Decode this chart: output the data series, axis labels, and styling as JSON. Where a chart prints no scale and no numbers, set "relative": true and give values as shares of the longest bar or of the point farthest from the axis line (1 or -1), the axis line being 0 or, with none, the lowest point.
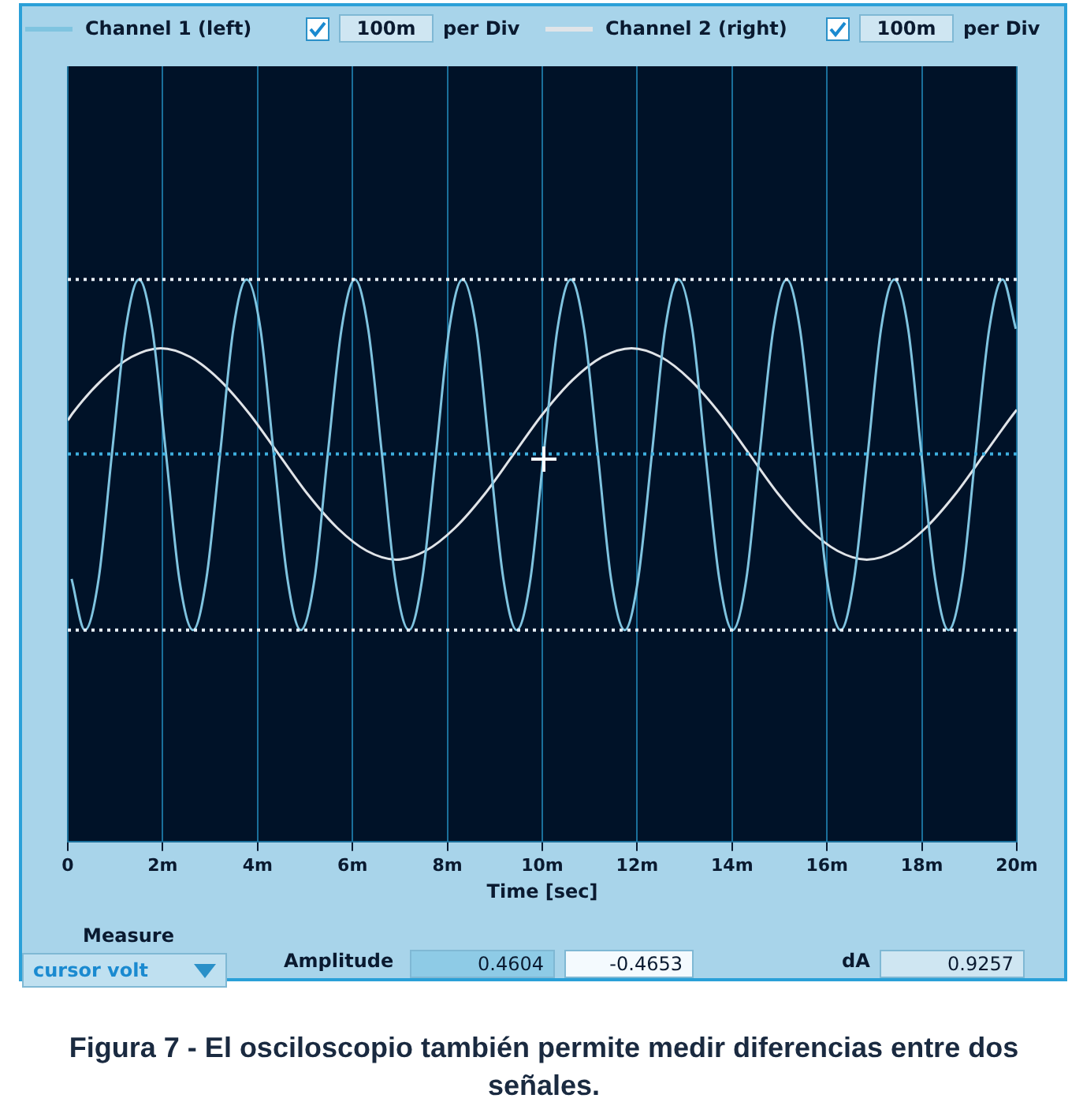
{
  "chart_data": {
    "type": "line",
    "relative": true,
    "xlabel": "Time [sec]",
    "xlim": [
      0,
      20
    ],
    "xticks": [
      0,
      {
        "value": 2,
        "label": "2m"
      },
      {
        "value": 4,
        "label": "4m"
      },
      {
        "value": 6,
        "label": "6m"
      },
      {
        "value": 8,
        "label": "8m"
      },
      {
        "value": 10,
        "label": "10m"
      },
      {
        "value": 12,
        "label": "12m"
      },
      {
        "value": 14,
        "label": "14m"
      },
      {
        "value": 16,
        "label": "16m"
      },
      {
        "value": 18,
        "label": "18m"
      },
      {
        "value": 20,
        "label": "20m"
      }
    ],
    "grid": "x",
    "legend": "top",
    "marker": "none",
    "line_style": "solid",
    "series": [
      {
        "name": "Channel 1 (left)",
        "color": "#7fc4e0",
        "x": [
          0.08,
          0.36,
          0.65,
          0.93,
          1.22,
          1.5,
          1.78,
          2.07,
          2.35,
          2.64,
          2.92,
          3.21,
          3.49,
          3.77,
          4.06,
          4.34,
          4.63,
          4.91,
          5.2,
          5.48,
          5.77,
          6.05,
          6.33,
          6.62,
          6.9,
          7.19,
          7.47,
          7.76,
          8.04,
          8.32,
          8.61,
          8.89,
          9.18,
          9.46,
          9.75,
          10.03,
          10.32,
          10.6,
          10.88,
          11.17,
          11.45,
          11.74,
          12.02,
          12.31,
          12.59,
          12.87,
          13.16,
          13.44,
          13.73,
          14.01,
          14.3,
          14.58,
          14.87,
          15.15,
          15.43,
          15.72,
          16,
          16.29,
          16.57,
          16.86,
          17.14,
          17.42,
          17.71,
          17.99,
          18.28,
          18.56,
          18.85,
          19.13,
          19.42,
          19.7,
          19.98
        ],
        "values": [
          -0.71,
          -1,
          -0.71,
          0,
          0.71,
          0.99,
          0.71,
          0,
          -0.71,
          -1,
          -0.71,
          0,
          0.71,
          0.99,
          0.71,
          0,
          -0.71,
          -1,
          -0.71,
          0,
          0.71,
          0.99,
          0.71,
          0,
          -0.71,
          -1,
          -0.71,
          0,
          0.71,
          0.99,
          0.71,
          0,
          -0.71,
          -1,
          -0.71,
          0,
          0.71,
          0.99,
          0.71,
          0,
          -0.71,
          -1,
          -0.71,
          0,
          0.71,
          0.99,
          0.71,
          0,
          -0.71,
          -1,
          -0.71,
          0,
          0.71,
          0.99,
          0.71,
          0,
          -0.71,
          -1,
          -0.71,
          0,
          0.71,
          0.99,
          0.71,
          0,
          -0.71,
          -1,
          -0.71,
          0,
          0.71,
          0.99,
          0.71
        ]
      },
      {
        "name": "Channel 2 (right)",
        "color": "#e0e4e8",
        "x": [
          0,
          0.1,
          0.72,
          1.34,
          1.96,
          2.58,
          3.2,
          3.82,
          4.44,
          5.06,
          5.68,
          6.3,
          6.92,
          7.54,
          8.16,
          8.78,
          9.4,
          10.02,
          10.64,
          11.26,
          11.88,
          12.5,
          13.12,
          13.74,
          14.36,
          14.98,
          15.6,
          16.22,
          16.84,
          17.46,
          18.08,
          18.7,
          19.32,
          19.94,
          20
        ],
        "values": [
          0.19,
          0.23,
          0.42,
          0.55,
          0.6,
          0.55,
          0.42,
          0.23,
          0,
          -0.23,
          -0.42,
          -0.55,
          -0.6,
          -0.55,
          -0.42,
          -0.23,
          0,
          0.23,
          0.42,
          0.55,
          0.6,
          0.55,
          0.42,
          0.23,
          0,
          -0.23,
          -0.42,
          -0.55,
          -0.6,
          -0.55,
          -0.42,
          -0.23,
          0,
          0.23,
          0.25
        ]
      }
    ],
    "ref_lines": [
      {
        "axis": "y",
        "value": 0.99,
        "color": "#e8f0f8",
        "line_style": "dotted"
      },
      {
        "axis": "y",
        "value": 0,
        "color": "#3fb0e0",
        "line_style": "dotted"
      },
      {
        "axis": "y",
        "value": -1,
        "color": "#e8f0f8",
        "line_style": "dotted"
      }
    ],
    "annotations": [
      "100m",
      "per Div",
      "100m",
      "per Div",
      "Measure",
      "cursor volt",
      "Amplitude",
      "0.4604",
      "-0.4653",
      "dA",
      "0.9257",
      "Figura 7 - El osciloscopio también permite medir diferencias entre dos señales."
    ]
  }
}
